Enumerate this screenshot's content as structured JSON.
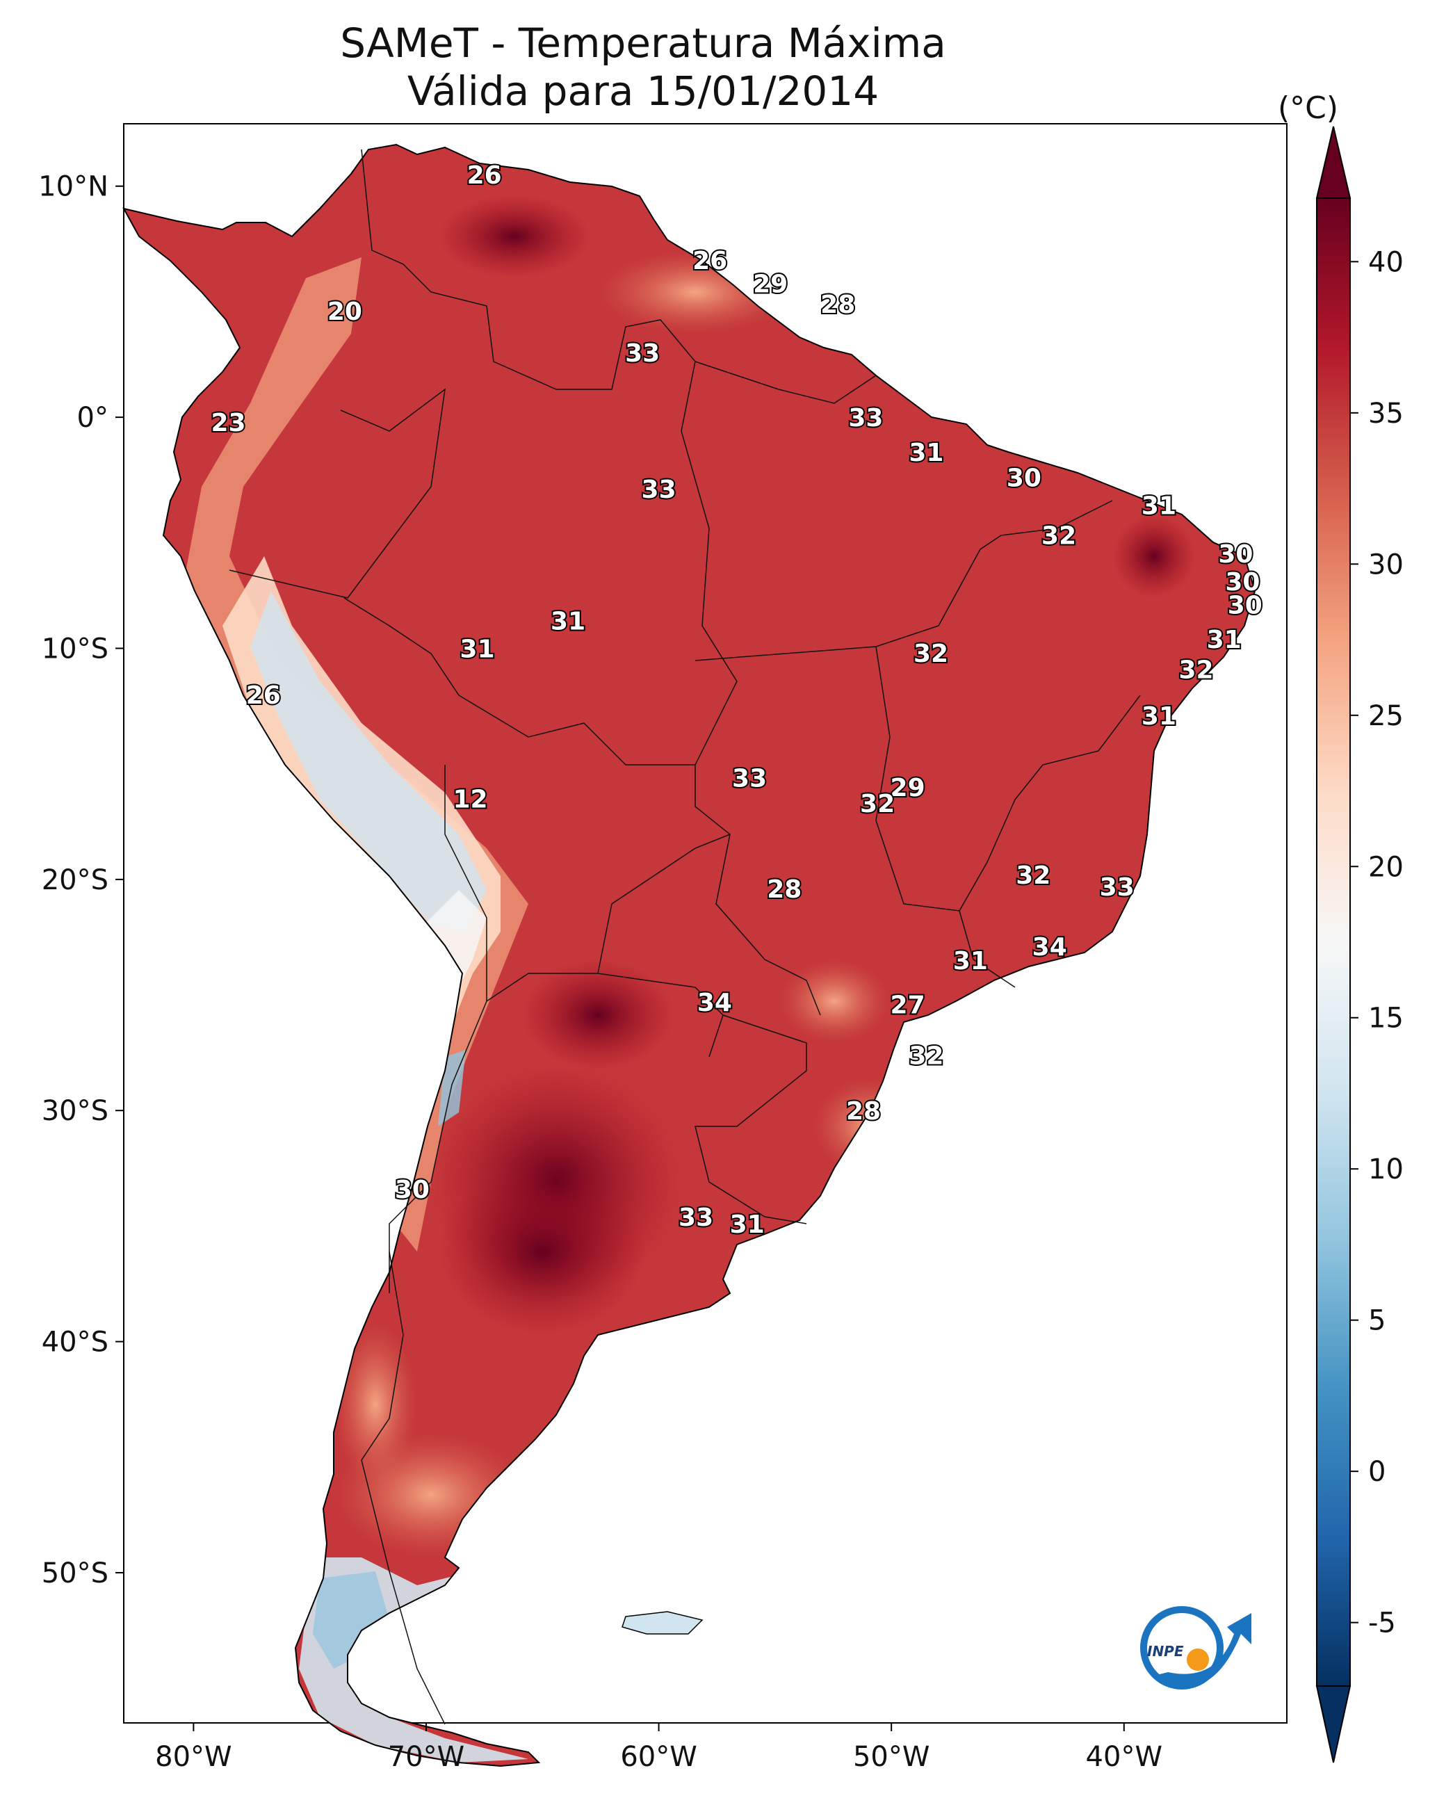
{
  "title_line1": "SAMeT - Temperatura Máxima",
  "title_line2": "Válida para 15/01/2014",
  "colorbar": {
    "unit": "(°C)",
    "ticks": [
      "40",
      "35",
      "30",
      "25",
      "20",
      "15",
      "10",
      "5",
      "0",
      "-5"
    ],
    "stops": [
      "#67001f",
      "#b2182b",
      "#d6604d",
      "#f4a582",
      "#fddbc7",
      "#f7f7f7",
      "#d1e5f0",
      "#92c5de",
      "#4393c3",
      "#2166ac",
      "#053061"
    ]
  },
  "axes": {
    "lon_ticks": [
      "80°W",
      "70°W",
      "60°W",
      "50°W",
      "40°W"
    ],
    "lat_ticks": [
      "10°N",
      "0°",
      "10°S",
      "20°S",
      "30°S",
      "40°S",
      "50°S"
    ]
  },
  "logo_text": "INPE",
  "stations": [
    {
      "lon": -67.5,
      "lat": 10.5,
      "value": "26"
    },
    {
      "lon": -73.5,
      "lat": 4.6,
      "value": "20"
    },
    {
      "lon": -57.8,
      "lat": 6.8,
      "value": "26"
    },
    {
      "lon": -55.2,
      "lat": 5.8,
      "value": "29"
    },
    {
      "lon": -52.3,
      "lat": 4.9,
      "value": "28"
    },
    {
      "lon": -60.7,
      "lat": 2.8,
      "value": "33"
    },
    {
      "lon": -78.5,
      "lat": -0.2,
      "value": "23"
    },
    {
      "lon": -51.1,
      "lat": 0.0,
      "value": "33"
    },
    {
      "lon": -48.5,
      "lat": -1.5,
      "value": "31"
    },
    {
      "lon": -44.3,
      "lat": -2.6,
      "value": "30"
    },
    {
      "lon": -60.0,
      "lat": -3.1,
      "value": "33"
    },
    {
      "lon": -38.5,
      "lat": -3.8,
      "value": "31"
    },
    {
      "lon": -42.8,
      "lat": -5.1,
      "value": "32"
    },
    {
      "lon": -35.2,
      "lat": -5.9,
      "value": "30"
    },
    {
      "lon": -34.9,
      "lat": -7.1,
      "value": "30"
    },
    {
      "lon": -34.8,
      "lat": -8.1,
      "value": "30"
    },
    {
      "lon": -35.7,
      "lat": -9.6,
      "value": "31"
    },
    {
      "lon": -36.9,
      "lat": -10.9,
      "value": "32"
    },
    {
      "lon": -38.5,
      "lat": -12.9,
      "value": "31"
    },
    {
      "lon": -48.3,
      "lat": -10.2,
      "value": "32"
    },
    {
      "lon": -63.9,
      "lat": -8.8,
      "value": "31"
    },
    {
      "lon": -67.8,
      "lat": -10.0,
      "value": "31"
    },
    {
      "lon": -77.0,
      "lat": -12.0,
      "value": "26"
    },
    {
      "lon": -68.1,
      "lat": -16.5,
      "value": "12"
    },
    {
      "lon": -56.1,
      "lat": -15.6,
      "value": "33"
    },
    {
      "lon": -49.3,
      "lat": -16.0,
      "value": "29"
    },
    {
      "lon": -50.6,
      "lat": -16.7,
      "value": "32"
    },
    {
      "lon": -54.6,
      "lat": -20.4,
      "value": "28"
    },
    {
      "lon": -43.9,
      "lat": -19.8,
      "value": "32"
    },
    {
      "lon": -40.3,
      "lat": -20.3,
      "value": "33"
    },
    {
      "lon": -43.2,
      "lat": -22.9,
      "value": "34"
    },
    {
      "lon": -46.6,
      "lat": -23.5,
      "value": "31"
    },
    {
      "lon": -57.6,
      "lat": -25.3,
      "value": "34"
    },
    {
      "lon": -49.3,
      "lat": -25.4,
      "value": "27"
    },
    {
      "lon": -48.5,
      "lat": -27.6,
      "value": "32"
    },
    {
      "lon": -51.2,
      "lat": -30.0,
      "value": "28"
    },
    {
      "lon": -70.6,
      "lat": -33.4,
      "value": "30"
    },
    {
      "lon": -58.4,
      "lat": -34.6,
      "value": "33"
    },
    {
      "lon": -56.2,
      "lat": -34.9,
      "value": "31"
    }
  ]
}
